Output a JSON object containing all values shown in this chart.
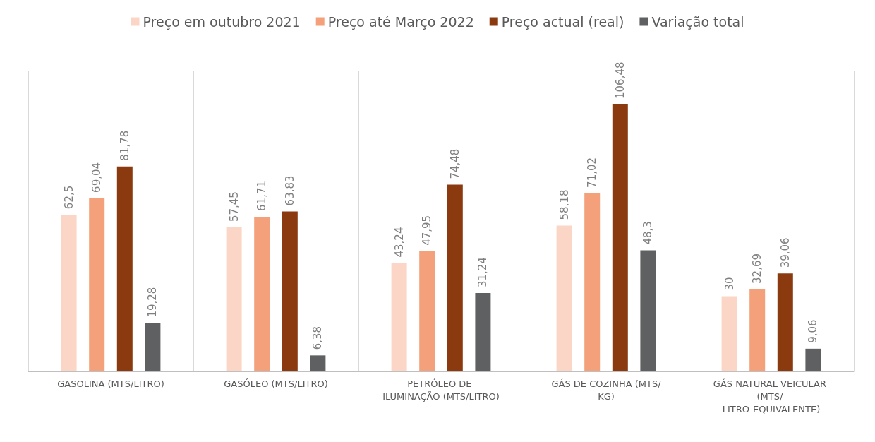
{
  "chart_data": {
    "type": "bar",
    "categories": [
      "GASOLINA (MTS/LITRO)",
      "GASÓLEO (MTS/LITRO)",
      "PETRÓLEO DE ILUMINAÇÃO (MTS/LITRO)",
      "GÁS DE COZINHA (MTS/KG)",
      "GÁS NATURAL VEICULAR (MTS/ LITRO-EQUIVALENTE)"
    ],
    "series": [
      {
        "name": "Preço em outubro 2021",
        "color": "#fbd5c5",
        "values": [
          62.5,
          57.45,
          43.24,
          58.18,
          30
        ],
        "value_labels": [
          "62,5",
          "57,45",
          "43,24",
          "58,18",
          "30"
        ]
      },
      {
        "name": "Preço até Março 2022",
        "color": "#f4a07a",
        "values": [
          69.04,
          61.71,
          47.95,
          71.02,
          32.69
        ],
        "value_labels": [
          "69,04",
          "61,71",
          "47,95",
          "71,02",
          "32,69"
        ]
      },
      {
        "name": "Preço actual (real)",
        "color": "#8b3a10",
        "values": [
          81.78,
          63.83,
          74.48,
          106.48,
          39.06
        ],
        "value_labels": [
          "81,78",
          "63,83",
          "74,48",
          "106,48",
          "39,06"
        ]
      },
      {
        "name": "Variação total",
        "color": "#5f6061",
        "values": [
          19.28,
          6.38,
          31.24,
          48.3,
          9.06
        ],
        "value_labels": [
          "19,28",
          "6,38",
          "31,24",
          "48,3",
          "9,06"
        ]
      }
    ],
    "legend": "top",
    "grid": "x"
  }
}
